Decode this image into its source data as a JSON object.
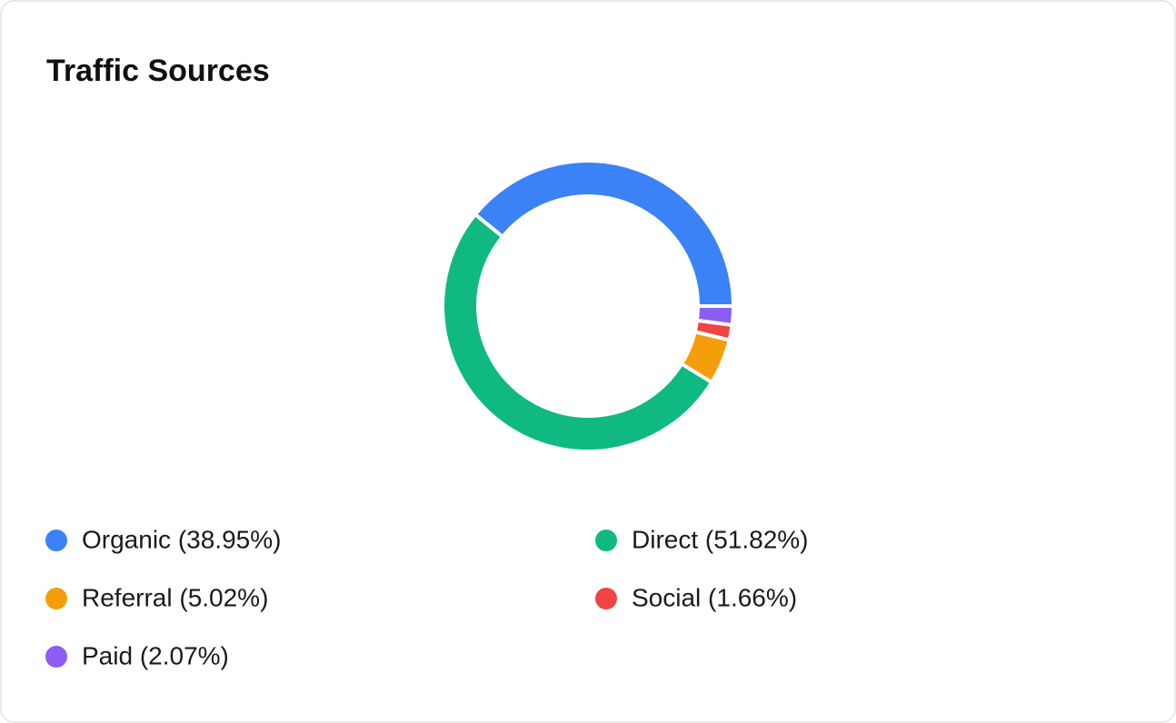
{
  "chart_data": {
    "type": "pie",
    "title": "Traffic Sources",
    "labels": [
      "Organic (38.95%)",
      "Direct (51.82%)",
      "Referral (5.02%)",
      "Social (1.66%)",
      "Paid (2.07%)"
    ],
    "values": [
      38.95,
      51.82,
      5.02,
      1.66,
      2.07
    ],
    "colors": [
      "#3b82f6",
      "#10b981",
      "#f59e0b",
      "#ef4444",
      "#8b5cf6"
    ]
  }
}
